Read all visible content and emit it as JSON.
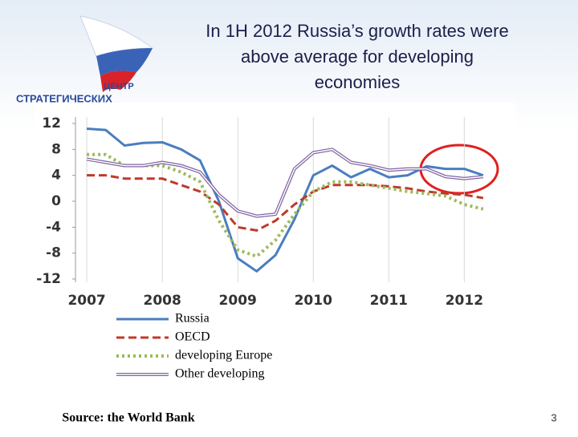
{
  "logo": {
    "line1": "ЦЕНТР",
    "line2": "СТРАТЕГИЧЕСКИХ"
  },
  "page_number": "3",
  "source": "Source: the World Bank",
  "chart_data": {
    "type": "line",
    "title": [
      "In 1H 2012 Russia’s growth rates were",
      "above average for developing",
      "economies"
    ],
    "x": [
      2007,
      2007.25,
      2007.5,
      2007.75,
      2008,
      2008.25,
      2008.5,
      2008.75,
      2009,
      2009.25,
      2009.5,
      2009.75,
      2010,
      2010.25,
      2010.5,
      2010.75,
      2011,
      2011.25,
      2011.5,
      2011.75,
      2012,
      2012.25
    ],
    "series": [
      {
        "name": "Russia",
        "color": "#4a7ebf",
        "style": "solid",
        "values": [
          11.2,
          11,
          8.6,
          9,
          9.1,
          8,
          6.3,
          0,
          -8.8,
          -10.8,
          -8.3,
          -2.8,
          4,
          5.5,
          3.7,
          5,
          3.7,
          4,
          5.4,
          5,
          5,
          4
        ]
      },
      {
        "name": "OECD",
        "color": "#c0392b",
        "style": "dashed",
        "values": [
          4,
          4,
          3.5,
          3.5,
          3.5,
          2.5,
          1.5,
          -0.5,
          -4,
          -4.5,
          -3,
          -0.5,
          1.5,
          2.5,
          2.5,
          2.5,
          2.3,
          2,
          1.5,
          1.2,
          1,
          0.5
        ]
      },
      {
        "name": "developing Europe",
        "color": "#9bbb59",
        "style": "dotted",
        "values": [
          7.2,
          7.2,
          5.5,
          5.5,
          5.5,
          4.5,
          3,
          -3,
          -7.5,
          -8.5,
          -6,
          -2,
          1.5,
          3,
          3,
          2.5,
          2,
          1.5,
          1.2,
          0.8,
          -0.5,
          -1.2
        ]
      },
      {
        "name": "Other developing",
        "color": "#8064a2",
        "style": "double",
        "values": [
          6.5,
          6,
          5.5,
          5.5,
          6,
          5.5,
          4.5,
          1,
          -1.5,
          -2.3,
          -2,
          5,
          7.5,
          8,
          6,
          5.5,
          4.8,
          5,
          5,
          3.8,
          3.5,
          3.8
        ]
      }
    ],
    "xlim": [
      2006.85,
      2012.4
    ],
    "xticks": [
      2007,
      2008,
      2009,
      2010,
      2011,
      2012
    ],
    "ylim": [
      -12,
      12
    ],
    "yticks": [
      12,
      8,
      4,
      0,
      -4,
      -8,
      -12
    ],
    "grid": "x"
  }
}
